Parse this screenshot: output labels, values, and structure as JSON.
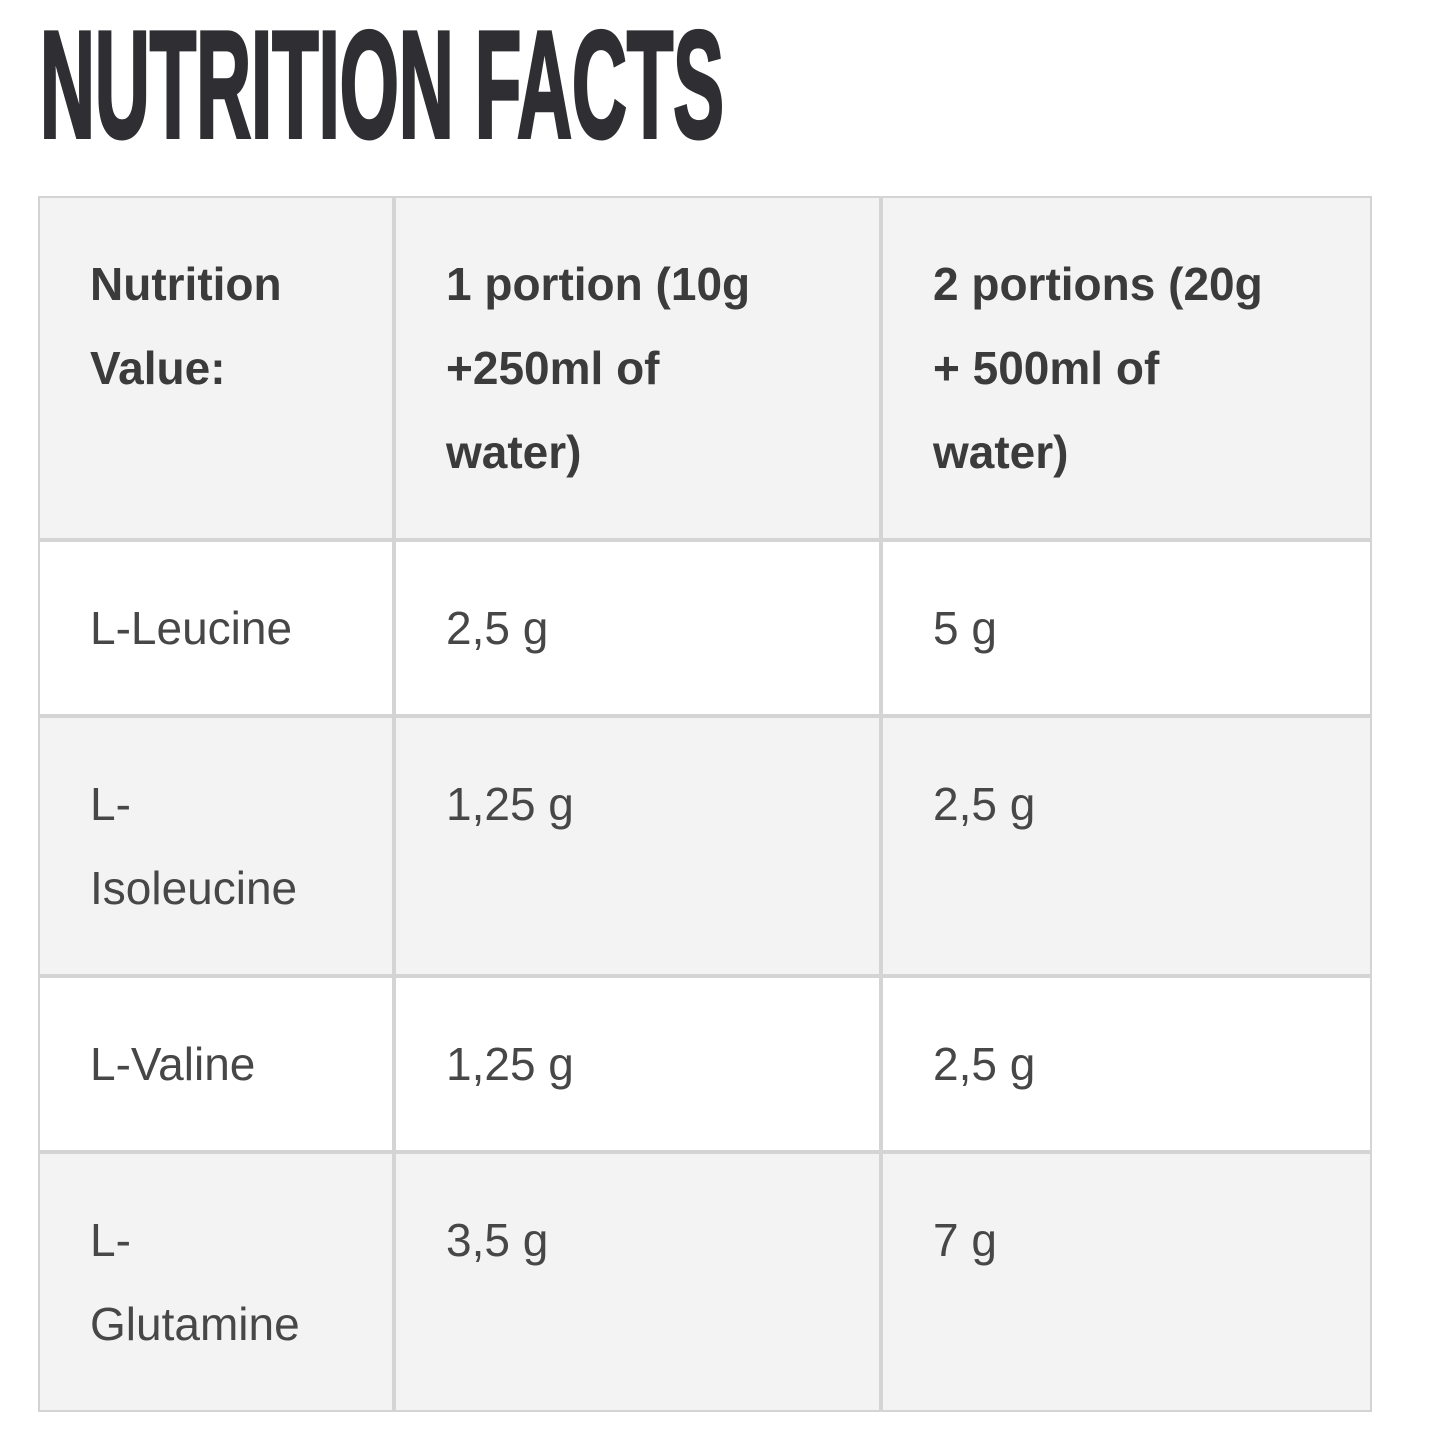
{
  "page": {
    "title": "NUTRITION FACTS"
  },
  "table": {
    "header": {
      "col_nutrition": "Nutrition Value:",
      "col_portion1": "1 portion (10g +250ml of water)",
      "col_portion2": "2 portions (20g + 500ml of water)"
    },
    "rows": [
      {
        "label": "L-Leucine",
        "portion1": "2,5 g",
        "portion2": "5 g"
      },
      {
        "label": "L-Isoleucine",
        "portion1": "1,25 g",
        "portion2": "2,5 g"
      },
      {
        "label": "L-Valine",
        "portion1": "1,25 g",
        "portion2": "2,5 g"
      },
      {
        "label": "L-Glutamine",
        "portion1": "3,5 g",
        "portion2": "7 g"
      }
    ]
  },
  "theme": {
    "title_color": "#2f2f33",
    "text_color": "#474747",
    "header_text_color": "#3b3b3b",
    "border_color": "#d4d4d4",
    "row_alt_bg": "#f3f3f3",
    "page_bg": "#ffffff"
  }
}
